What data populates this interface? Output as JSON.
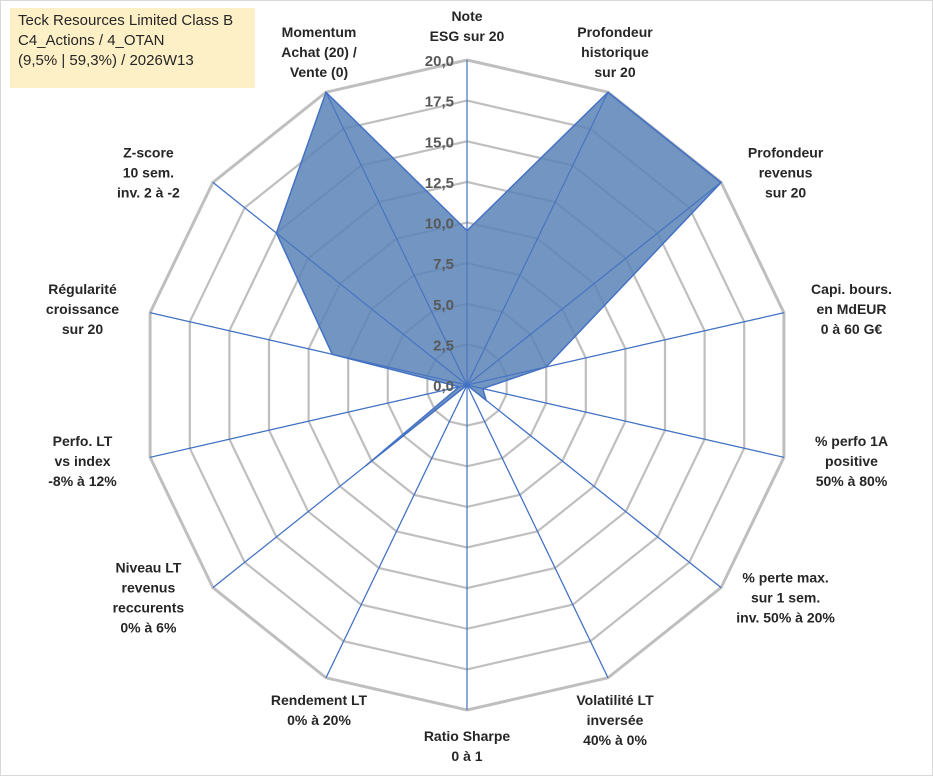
{
  "title_box": {
    "line1": "Teck Resources Limited Class B",
    "line2": "C4_Actions / 4_OTAN",
    "line3": "(9,5% | 59,3%) / 2026W13"
  },
  "colors": {
    "fill": "#5b83b7",
    "stroke": "#4472c4",
    "grid": "#bfbfbf",
    "title_bg": "#fdefc6"
  },
  "chart_data": {
    "type": "radar",
    "title": "Teck Resources Limited Class B",
    "rmin": 0,
    "rmax": 20,
    "ticks": [
      "0,0",
      "2,5",
      "5,0",
      "7,5",
      "10,0",
      "12,5",
      "15,0",
      "17,5",
      "20,0"
    ],
    "categories": [
      [
        "Note",
        "ESG sur 20"
      ],
      [
        "Profondeur",
        "historique",
        "sur 20"
      ],
      [
        "Profondeur",
        "revenus",
        "sur 20"
      ],
      [
        "Capi. bours.",
        "en MdEUR",
        "0 à 60 G€"
      ],
      [
        "% perfo 1A",
        "positive",
        "50% à 80%"
      ],
      [
        "% perte max.",
        "sur 1 sem.",
        "inv. 50% à 20%"
      ],
      [
        "Volatilité LT",
        "inversée",
        "40% à 0%"
      ],
      [
        "Ratio Sharpe",
        "0 à 1"
      ],
      [
        "Rendement LT",
        "0% à 20%"
      ],
      [
        "Niveau LT",
        "revenus",
        "reccurents",
        "0% à 6%"
      ],
      [
        "Perfo. LT",
        "vs index",
        "-8% à 12%"
      ],
      [
        "Régularité",
        "croissance",
        "sur 20"
      ],
      [
        "Z-score",
        "10 sem.",
        "inv. 2 à -2"
      ],
      [
        "Momentum",
        "Achat (20) /",
        "Vente (0)"
      ]
    ],
    "series": [
      {
        "name": "Teck Resources Limited Class B",
        "values": [
          9.5,
          20.0,
          20.0,
          5.0,
          1.0,
          1.5,
          0,
          0,
          0,
          8.0,
          0.5,
          8.5,
          15.0,
          20.0
        ]
      }
    ]
  }
}
